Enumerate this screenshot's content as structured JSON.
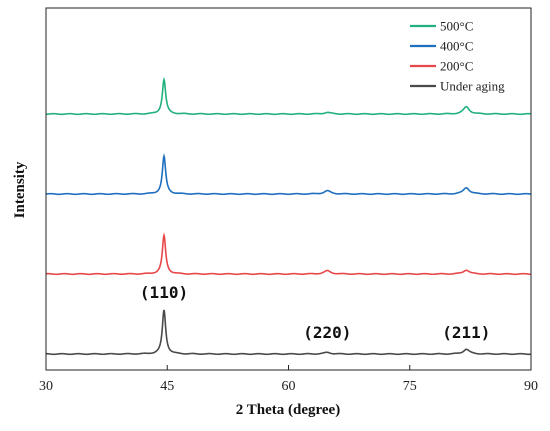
{
  "chart_data": {
    "type": "line",
    "xlabel": "2 Theta (degree)",
    "ylabel": "Intensity",
    "xlim": [
      30,
      90
    ],
    "xticks": [
      30,
      45,
      60,
      75,
      90
    ],
    "yticks_visible": false,
    "grid": false,
    "legend_position": "top-right",
    "series_layout": "stacked-offset",
    "series": [
      {
        "name": "500°C",
        "color": "#22b07d",
        "baseline": 3.0,
        "peaks": [
          {
            "x": 44.6,
            "height": 0.43,
            "width": 0.25
          },
          {
            "x": 64.8,
            "height": 0.02,
            "width": 0.5
          },
          {
            "x": 82.0,
            "height": 0.09,
            "width": 0.45
          }
        ]
      },
      {
        "name": "400°C",
        "color": "#1f6fbf",
        "baseline": 2.0,
        "peaks": [
          {
            "x": 44.6,
            "height": 0.47,
            "width": 0.25
          },
          {
            "x": 64.8,
            "height": 0.04,
            "width": 0.5
          },
          {
            "x": 82.0,
            "height": 0.08,
            "width": 0.45
          }
        ]
      },
      {
        "name": "200°C",
        "color": "#e8474a",
        "baseline": 1.0,
        "peaks": [
          {
            "x": 44.6,
            "height": 0.48,
            "width": 0.25
          },
          {
            "x": 64.8,
            "height": 0.04,
            "width": 0.5
          },
          {
            "x": 82.0,
            "height": 0.05,
            "width": 0.45
          }
        ]
      },
      {
        "name": "Under aging",
        "color": "#4a4a4a",
        "baseline": 0.0,
        "peaks": [
          {
            "x": 44.6,
            "height": 0.55,
            "width": 0.25
          },
          {
            "x": 64.8,
            "height": 0.02,
            "width": 0.5
          },
          {
            "x": 82.0,
            "height": 0.06,
            "width": 0.45
          }
        ]
      }
    ],
    "annotations": [
      {
        "text": "(110)",
        "x": 44.6
      },
      {
        "text": "(220)",
        "x": 64.8
      },
      {
        "text": "(211)",
        "x": 82.0
      }
    ]
  }
}
